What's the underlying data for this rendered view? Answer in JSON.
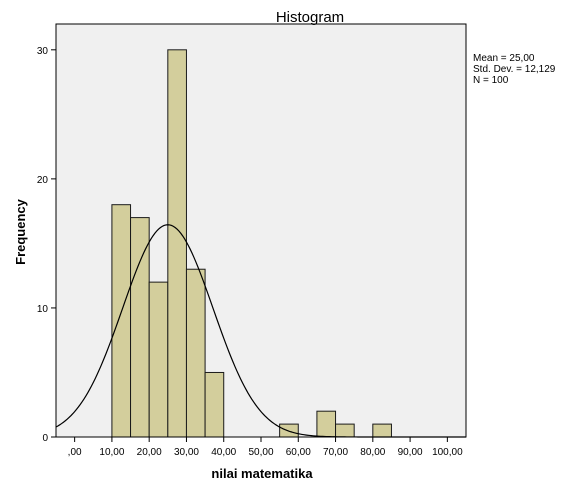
{
  "chart_data": {
    "type": "bar",
    "title": "Histogram",
    "xlabel": "nilai matematika",
    "ylabel": "Frequency",
    "xlim": [
      -5,
      105
    ],
    "ylim": [
      0,
      32
    ],
    "x_ticks": [
      0,
      10,
      20,
      30,
      40,
      50,
      60,
      70,
      80,
      90,
      100
    ],
    "x_tick_labels": [
      ",00",
      "10,00",
      "20,00",
      "30,00",
      "40,00",
      "50,00",
      "60,00",
      "70,00",
      "80,00",
      "90,00",
      "100,00"
    ],
    "y_ticks": [
      0,
      10,
      20,
      30
    ],
    "y_tick_labels": [
      "0",
      "10",
      "20",
      "30"
    ],
    "bins": [
      {
        "start": 10,
        "end": 15,
        "count": 18
      },
      {
        "start": 15,
        "end": 20,
        "count": 17
      },
      {
        "start": 20,
        "end": 25,
        "count": 12
      },
      {
        "start": 25,
        "end": 30,
        "count": 30
      },
      {
        "start": 30,
        "end": 35,
        "count": 13
      },
      {
        "start": 35,
        "end": 40,
        "count": 5
      },
      {
        "start": 55,
        "end": 60,
        "count": 1
      },
      {
        "start": 65,
        "end": 70,
        "count": 2
      },
      {
        "start": 70,
        "end": 75,
        "count": 1
      },
      {
        "start": 80,
        "end": 85,
        "count": 1
      }
    ],
    "normal_curve": {
      "mean": 25,
      "std_dev": 12.129,
      "n": 100,
      "bin_width": 5
    },
    "stats_box": [
      "Mean = 25,00",
      "Std. Dev. = 12,129",
      "N = 100"
    ],
    "grid": false,
    "colors": {
      "bar_fill": "#d3ce9c",
      "bar_stroke": "#1a1a1a",
      "plot_background": "#f0f0f0",
      "curve": "#000000"
    }
  }
}
